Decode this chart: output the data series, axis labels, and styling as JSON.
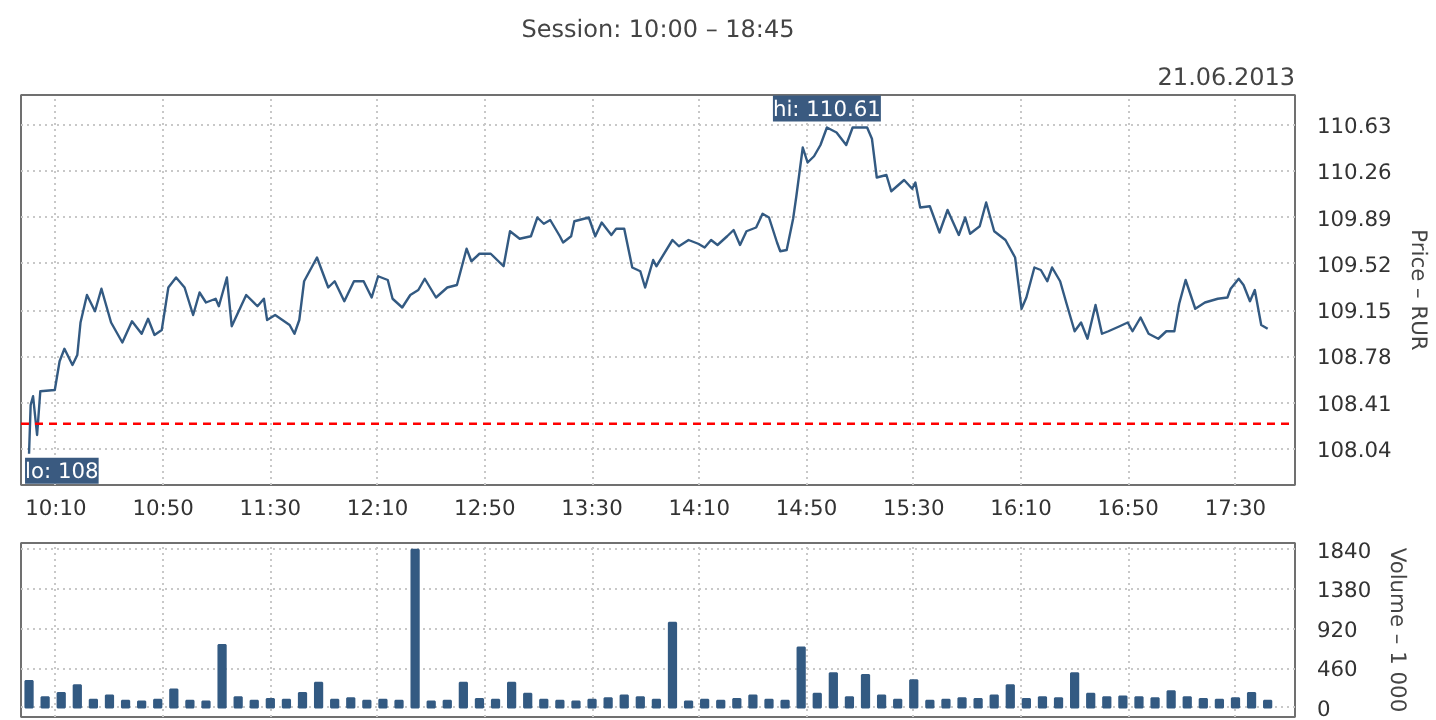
{
  "chart_data": [
    {
      "type": "line",
      "title": "Session: 10:00 – 18:45",
      "subtitle": "21.06.2013",
      "ylabel": "Price – RUR",
      "xlim": [
        9.95,
        17.87
      ],
      "ylim": [
        107.75,
        110.87
      ],
      "xticks": [
        {
          "value": 10.1667,
          "label": null
        },
        {
          "value": 10.8333,
          "label": null
        },
        {
          "value": 11.5,
          "label": null
        },
        {
          "value": 12.1667,
          "label": null
        },
        {
          "value": 12.8333,
          "label": null
        },
        {
          "value": 13.5,
          "label": null
        },
        {
          "value": 14.1667,
          "label": null
        },
        {
          "value": 14.8333,
          "label": null
        },
        {
          "value": 15.5,
          "label": null
        },
        {
          "value": 16.1667,
          "label": null
        },
        {
          "value": 16.8333,
          "label": null
        },
        {
          "value": 17.5,
          "label": null
        }
      ],
      "yticks": [
        108.04,
        108.41,
        108.78,
        109.15,
        109.52,
        109.89,
        110.26,
        110.63
      ],
      "tick_labels": "y",
      "grid": true,
      "ref_lines": [
        {
          "axis": "y",
          "value": 108.24,
          "color": "#ff0000",
          "line_style": "dashed"
        }
      ],
      "annotations": [
        {
          "text": "hi: 110.61",
          "x": 14.96,
          "y": 110.61
        },
        {
          "text": "lo: 108",
          "x": 10.0,
          "y": 108.0
        }
      ],
      "series": [
        {
          "color": "#335a82",
          "x": [
            10.0,
            10.01,
            10.025,
            10.05,
            10.07,
            10.16,
            10.19,
            10.22,
            10.27,
            10.3,
            10.32,
            10.36,
            10.41,
            10.45,
            10.51,
            10.58,
            10.64,
            10.7,
            10.74,
            10.78,
            10.825,
            10.866,
            10.914,
            10.967,
            11.02,
            11.06,
            11.1,
            11.16,
            11.18,
            11.23,
            11.26,
            11.35,
            11.42,
            11.46,
            11.48,
            11.53,
            11.62,
            11.65,
            11.68,
            11.71,
            11.79,
            11.86,
            11.9,
            11.96,
            12.02,
            12.08,
            12.13,
            12.17,
            12.23,
            12.26,
            12.32,
            12.37,
            12.42,
            12.46,
            12.53,
            12.6,
            12.66,
            12.72,
            12.75,
            12.8,
            12.87,
            12.95,
            12.99,
            13.05,
            13.12,
            13.16,
            13.2,
            13.24,
            13.3,
            13.32,
            13.37,
            13.39,
            13.48,
            13.52,
            13.56,
            13.62,
            13.65,
            13.7,
            13.75,
            13.8,
            13.83,
            13.88,
            13.9,
            14.0,
            14.04,
            14.1,
            14.16,
            14.2,
            14.24,
            14.28,
            14.34,
            14.38,
            14.42,
            14.46,
            14.52,
            14.56,
            14.6,
            14.65,
            14.67,
            14.71,
            14.75,
            14.77,
            14.81,
            14.84,
            14.88,
            14.92,
            14.96,
            15.02,
            15.08,
            15.12,
            15.21,
            15.24,
            15.27,
            15.33,
            15.36,
            15.44,
            15.49,
            15.51,
            15.54,
            15.6,
            15.66,
            15.71,
            15.78,
            15.82,
            15.85,
            15.91,
            15.95,
            16.0,
            16.07,
            16.13,
            16.17,
            16.2,
            16.25,
            16.29,
            16.33,
            16.36,
            16.41,
            16.45,
            16.5,
            16.54,
            16.58,
            16.63,
            16.67,
            16.71,
            16.78,
            16.83,
            16.86,
            16.91,
            16.96,
            17.02,
            17.07,
            17.12,
            17.15,
            17.19,
            17.25,
            17.31,
            17.39,
            17.45,
            17.47,
            17.52,
            17.55,
            17.59,
            17.62,
            17.66,
            17.7
          ],
          "values": [
            108.0,
            108.39,
            108.46,
            108.15,
            108.5,
            108.51,
            108.74,
            108.84,
            108.71,
            108.79,
            109.05,
            109.27,
            109.14,
            109.32,
            109.05,
            108.89,
            109.06,
            108.96,
            109.08,
            108.95,
            108.99,
            109.33,
            109.41,
            109.33,
            109.11,
            109.29,
            109.21,
            109.24,
            109.18,
            109.41,
            109.02,
            109.27,
            109.18,
            109.24,
            109.07,
            109.11,
            109.03,
            108.96,
            109.07,
            109.38,
            109.57,
            109.33,
            109.38,
            109.22,
            109.38,
            109.38,
            109.25,
            109.42,
            109.39,
            109.24,
            109.17,
            109.27,
            109.31,
            109.4,
            109.25,
            109.33,
            109.35,
            109.64,
            109.54,
            109.6,
            109.6,
            109.5,
            109.78,
            109.72,
            109.74,
            109.89,
            109.84,
            109.87,
            109.74,
            109.69,
            109.74,
            109.86,
            109.89,
            109.74,
            109.85,
            109.75,
            109.8,
            109.8,
            109.49,
            109.46,
            109.33,
            109.55,
            109.5,
            109.71,
            109.66,
            109.71,
            109.68,
            109.65,
            109.71,
            109.67,
            109.74,
            109.79,
            109.67,
            109.78,
            109.81,
            109.92,
            109.89,
            109.69,
            109.62,
            109.63,
            109.88,
            110.06,
            110.45,
            110.33,
            110.38,
            110.47,
            110.61,
            110.57,
            110.47,
            110.61,
            110.61,
            110.52,
            110.21,
            110.23,
            110.1,
            110.19,
            110.12,
            110.17,
            109.97,
            109.98,
            109.77,
            109.95,
            109.75,
            109.89,
            109.76,
            109.82,
            110.01,
            109.78,
            109.71,
            109.57,
            109.16,
            109.25,
            109.49,
            109.47,
            109.38,
            109.49,
            109.38,
            109.2,
            108.98,
            109.05,
            108.92,
            109.19,
            108.96,
            108.98,
            109.02,
            109.05,
            108.98,
            109.09,
            108.96,
            108.92,
            108.98,
            108.98,
            109.2,
            109.39,
            109.16,
            109.21,
            109.24,
            109.25,
            109.32,
            109.4,
            109.35,
            109.22,
            109.31,
            109.03,
            109.0
          ]
        }
      ]
    },
    {
      "type": "bar",
      "ylabel": "Volume – 1 000",
      "xlim": [
        9.95,
        17.87
      ],
      "ylim": [
        -110,
        1920
      ],
      "xticks": [
        {
          "value": 10.1667,
          "label": "10:10"
        },
        {
          "value": 10.8333,
          "label": "10:50"
        },
        {
          "value": 11.5,
          "label": "11:30"
        },
        {
          "value": 12.1667,
          "label": "12:10"
        },
        {
          "value": 12.8333,
          "label": "12:50"
        },
        {
          "value": 13.5,
          "label": "13:30"
        },
        {
          "value": 14.1667,
          "label": "14:10"
        },
        {
          "value": 14.8333,
          "label": "14:50"
        },
        {
          "value": 15.5,
          "label": "15:30"
        },
        {
          "value": 16.1667,
          "label": "16:10"
        },
        {
          "value": 16.8333,
          "label": "16:50"
        },
        {
          "value": 17.5,
          "label": "17:30"
        }
      ],
      "yticks": [
        0,
        460,
        920,
        1380,
        1840
      ],
      "grid": true,
      "x": [
        10.0,
        10.1,
        10.2,
        10.3,
        10.4,
        10.5,
        10.6,
        10.7,
        10.8,
        10.9,
        11.0,
        11.1,
        11.2,
        11.3,
        11.4,
        11.5,
        11.6,
        11.7,
        11.8,
        11.9,
        12.0,
        12.1,
        12.2,
        12.3,
        12.4,
        12.5,
        12.6,
        12.7,
        12.8,
        12.9,
        13.0,
        13.1,
        13.2,
        13.3,
        13.4,
        13.5,
        13.6,
        13.7,
        13.8,
        13.9,
        14.0,
        14.1,
        14.2,
        14.3,
        14.4,
        14.5,
        14.6,
        14.7,
        14.8,
        14.9,
        15.0,
        15.1,
        15.2,
        15.3,
        15.4,
        15.5,
        15.6,
        15.7,
        15.8,
        15.9,
        16.0,
        16.1,
        16.2,
        16.3,
        16.4,
        16.5,
        16.6,
        16.7,
        16.8,
        16.9,
        17.0,
        17.1,
        17.2,
        17.3,
        17.4,
        17.5,
        17.6,
        17.7
      ],
      "series": [
        {
          "color": "#335a82",
          "values": [
            310,
            120,
            170,
            260,
            90,
            140,
            80,
            70,
            90,
            210,
            80,
            70,
            730,
            120,
            80,
            100,
            90,
            170,
            290,
            90,
            110,
            80,
            90,
            80,
            1840,
            70,
            80,
            290,
            100,
            90,
            290,
            160,
            90,
            80,
            70,
            90,
            110,
            140,
            120,
            90,
            990,
            70,
            90,
            80,
            100,
            140,
            90,
            80,
            700,
            160,
            400,
            120,
            380,
            140,
            90,
            320,
            80,
            90,
            110,
            100,
            140,
            260,
            100,
            120,
            110,
            400,
            160,
            120,
            130,
            120,
            110,
            190,
            120,
            100,
            90,
            110,
            170,
            80
          ]
        }
      ]
    }
  ]
}
